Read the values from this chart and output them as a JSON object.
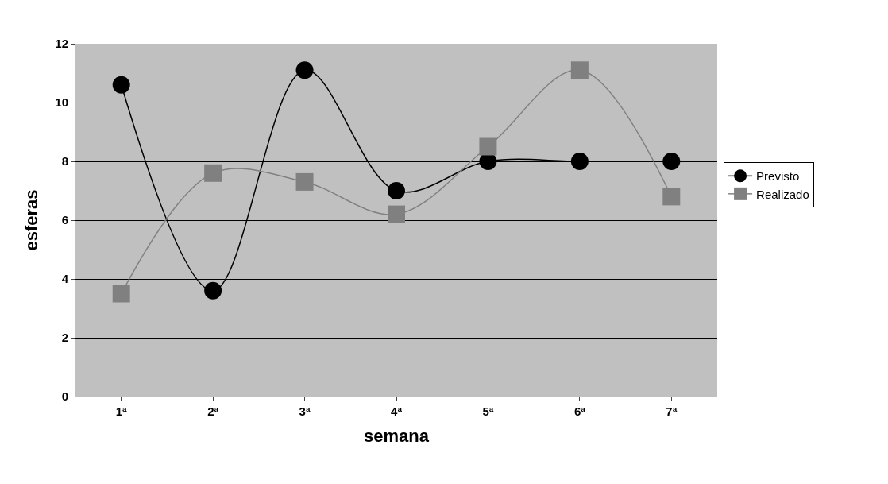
{
  "chart_data": {
    "type": "line",
    "xlabel": "semana",
    "ylabel": "esferas",
    "categories": [
      "1ª",
      "2ª",
      "3ª",
      "4ª",
      "5ª",
      "6ª",
      "7ª"
    ],
    "series": [
      {
        "name": "Previsto",
        "color": "#000000",
        "marker": "circle",
        "values": [
          10.6,
          3.6,
          11.1,
          7,
          8,
          8,
          8
        ]
      },
      {
        "name": "Realizado",
        "color": "#808080",
        "marker": "square",
        "values": [
          3.5,
          7.6,
          7.3,
          6.2,
          8.5,
          11.1,
          6.8
        ]
      }
    ],
    "ylim": [
      0,
      12
    ],
    "yticks": [
      0,
      2,
      4,
      6,
      8,
      10,
      12
    ],
    "grid": "y",
    "legend": "right"
  }
}
